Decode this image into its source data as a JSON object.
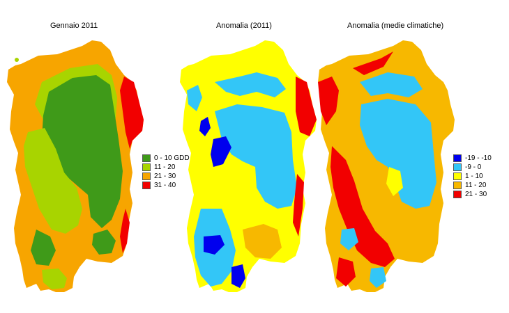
{
  "panels": [
    {
      "title": "Gennaio 2011",
      "legend": [
        {
          "label": "0 - 10 GDD",
          "color": "#3f9a19"
        },
        {
          "label": "11 - 20",
          "color": "#a8d400"
        },
        {
          "label": "21 - 30",
          "color": "#f7a500"
        },
        {
          "label": "31 - 40",
          "color": "#f20000"
        }
      ]
    },
    {
      "title": "Anomalia (2011)",
      "legend": []
    },
    {
      "title": "Anomalia (medie climatiche)",
      "legend": [
        {
          "label": "-19 - -10",
          "color": "#0000ee"
        },
        {
          "label": "-9 - 0",
          "color": "#33c6f7"
        },
        {
          "label": "1 - 10",
          "color": "#ffff00"
        },
        {
          "label": "11 - 20",
          "color": "#f7b800"
        },
        {
          "label": "21 - 30",
          "color": "#f20000"
        }
      ]
    }
  ]
}
